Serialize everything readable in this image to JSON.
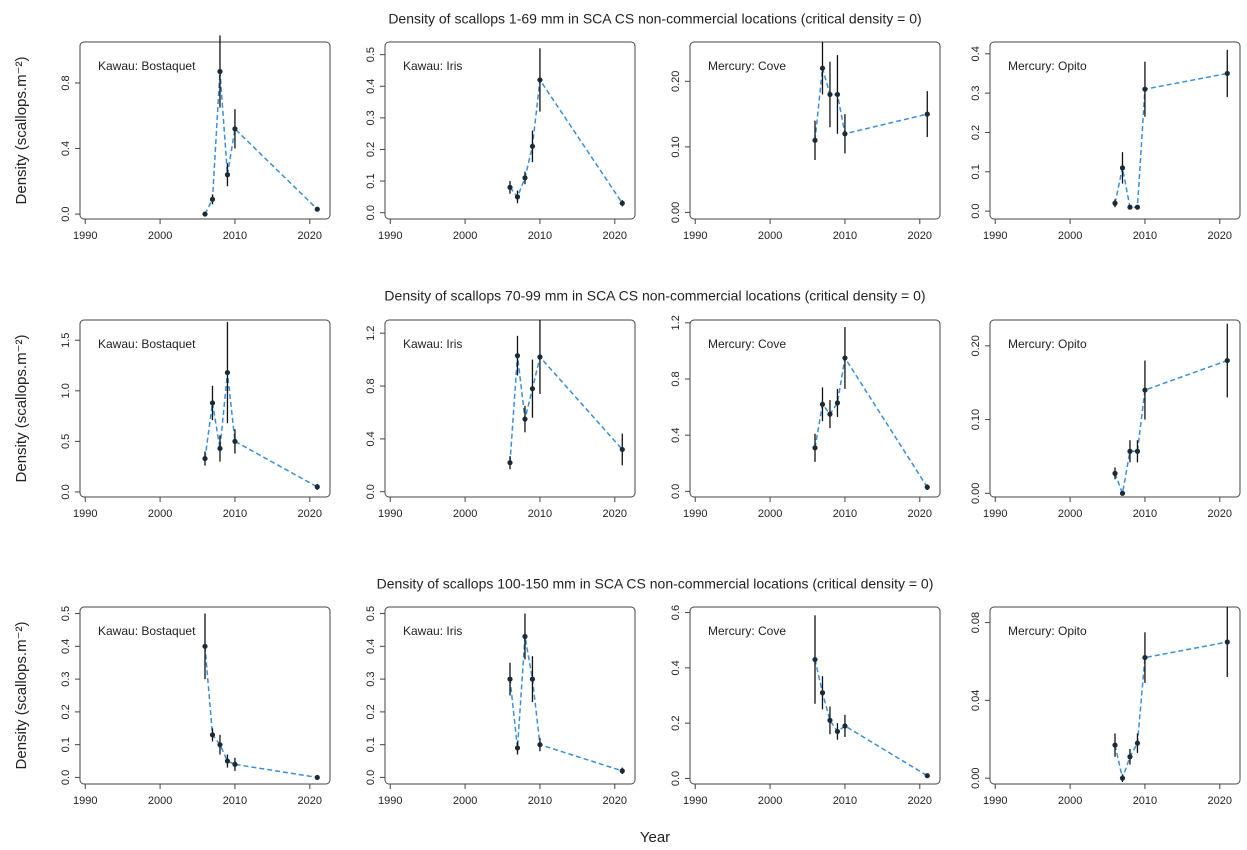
{
  "row_titles": [
    "Density of scallops 1-69 mm in SCA CS non-commercial locations (critical density = 0)",
    "Density of scallops 70-99 mm in SCA CS non-commercial locations (critical density = 0)",
    "Density of scallops 100-150 mm in SCA CS non-commercial locations (critical density = 0)"
  ],
  "ylabel": "Density (scallops.m⁻²)",
  "xlabel": "Year",
  "chart_data": [
    {
      "type": "line",
      "title": "Kawau: Bostaquet",
      "x": [
        2006,
        2007,
        2008,
        2009,
        2010,
        2021
      ],
      "values": [
        0.0,
        0.09,
        0.87,
        0.24,
        0.52,
        0.03
      ],
      "errors": [
        0.005,
        0.03,
        0.22,
        0.07,
        0.12,
        0.01
      ],
      "xlim": [
        1989.3,
        2022.7
      ],
      "xticks": [
        1990,
        2000,
        2010,
        2020
      ],
      "ylim": [
        -0.03,
        1.05
      ],
      "yticks": [
        {
          "value": 0,
          "label": "0.0"
        },
        0.4,
        0.8
      ],
      "color": "#3a8fd9"
    },
    {
      "type": "line",
      "title": "Kawau: Iris",
      "x": [
        2006,
        2007,
        2008,
        2009,
        2010,
        2021
      ],
      "values": [
        0.08,
        0.05,
        0.11,
        0.21,
        0.42,
        0.03
      ],
      "errors": [
        0.02,
        0.02,
        0.02,
        0.05,
        0.1,
        0.01
      ],
      "xlim": [
        1989.3,
        2022.7
      ],
      "xticks": [
        1990,
        2000,
        2010,
        2020
      ],
      "ylim": [
        -0.02,
        0.54
      ],
      "yticks": [
        {
          "value": 0,
          "label": "0.0"
        },
        0.1,
        0.2,
        0.3,
        0.4,
        0.5
      ],
      "color": "#3a8fd9"
    },
    {
      "type": "line",
      "title": "Mercury: Cove",
      "x": [
        2006,
        2007,
        2008,
        2009,
        2010,
        2021
      ],
      "values": [
        0.11,
        0.22,
        0.18,
        0.18,
        0.12,
        0.15
      ],
      "errors": [
        0.03,
        0.04,
        0.05,
        0.06,
        0.03,
        0.035
      ],
      "xlim": [
        1989.3,
        2022.7
      ],
      "xticks": [
        1990,
        2000,
        2010,
        2020
      ],
      "ylim": [
        -0.01,
        0.26
      ],
      "yticks": [
        {
          "value": 0,
          "label": "0.00"
        },
        {
          "value": 0.1,
          "label": "0.10"
        },
        {
          "value": 0.2,
          "label": "0.20"
        }
      ],
      "color": "#3a8fd9"
    },
    {
      "type": "line",
      "title": "Mercury: Opito",
      "x": [
        2006,
        2007,
        2008,
        2009,
        2010,
        2021
      ],
      "values": [
        0.02,
        0.11,
        0.01,
        0.01,
        0.31,
        0.35
      ],
      "errors": [
        0.01,
        0.04,
        0.005,
        0.005,
        0.07,
        0.06
      ],
      "xlim": [
        1989.3,
        2022.7
      ],
      "xticks": [
        1990,
        2000,
        2010,
        2020
      ],
      "ylim": [
        -0.02,
        0.43
      ],
      "yticks": [
        {
          "value": 0,
          "label": "0.0"
        },
        0.1,
        0.2,
        0.3,
        0.4
      ],
      "color": "#3a8fd9"
    },
    {
      "type": "line",
      "title": "Kawau: Bostaquet",
      "x": [
        2006,
        2007,
        2008,
        2009,
        2010,
        2021
      ],
      "values": [
        0.33,
        0.88,
        0.43,
        1.18,
        0.5,
        0.05
      ],
      "errors": [
        0.07,
        0.17,
        0.13,
        0.5,
        0.12,
        0.03
      ],
      "xlim": [
        1989.3,
        2022.7
      ],
      "xticks": [
        1990,
        2000,
        2010,
        2020
      ],
      "ylim": [
        -0.05,
        1.7
      ],
      "yticks": [
        {
          "value": 0,
          "label": "0.0"
        },
        0.5,
        {
          "value": 1,
          "label": "1.0"
        },
        1.5
      ],
      "color": "#3a8fd9"
    },
    {
      "type": "line",
      "title": "Kawau: Iris",
      "x": [
        2006,
        2007,
        2008,
        2009,
        2010,
        2021
      ],
      "values": [
        0.22,
        1.03,
        0.55,
        0.78,
        1.02,
        0.32
      ],
      "errors": [
        0.05,
        0.15,
        0.1,
        0.22,
        0.28,
        0.12
      ],
      "xlim": [
        1989.3,
        2022.7
      ],
      "xticks": [
        1990,
        2000,
        2010,
        2020
      ],
      "ylim": [
        -0.04,
        1.3
      ],
      "yticks": [
        {
          "value": 0,
          "label": "0.0"
        },
        0.4,
        0.8,
        1.2
      ],
      "color": "#3a8fd9"
    },
    {
      "type": "line",
      "title": "Mercury: Cove",
      "x": [
        2006,
        2007,
        2008,
        2009,
        2010,
        2021
      ],
      "values": [
        0.31,
        0.62,
        0.55,
        0.63,
        0.95,
        0.03
      ],
      "errors": [
        0.1,
        0.12,
        0.1,
        0.1,
        0.22,
        0.02
      ],
      "xlim": [
        1989.3,
        2022.7
      ],
      "xticks": [
        1990,
        2000,
        2010,
        2020
      ],
      "ylim": [
        -0.04,
        1.22
      ],
      "yticks": [
        {
          "value": 0,
          "label": "0.0"
        },
        0.4,
        0.8,
        1.2
      ],
      "color": "#3a8fd9"
    },
    {
      "type": "line",
      "title": "Mercury: Opito",
      "x": [
        2006,
        2007,
        2008,
        2009,
        2010,
        2021
      ],
      "values": [
        0.027,
        0.0,
        0.057,
        0.057,
        0.14,
        0.18
      ],
      "errors": [
        0.008,
        0.003,
        0.015,
        0.015,
        0.04,
        0.05
      ],
      "xlim": [
        1989.3,
        2022.7
      ],
      "xticks": [
        1990,
        2000,
        2010,
        2020
      ],
      "ylim": [
        -0.005,
        0.235
      ],
      "yticks": [
        {
          "value": 0,
          "label": "0.00"
        },
        {
          "value": 0.1,
          "label": "0.10"
        },
        {
          "value": 0.2,
          "label": "0.20"
        }
      ],
      "color": "#3a8fd9"
    },
    {
      "type": "line",
      "title": "Kawau: Bostaquet",
      "x": [
        2006,
        2007,
        2008,
        2009,
        2010,
        2021
      ],
      "values": [
        0.4,
        0.13,
        0.1,
        0.05,
        0.04,
        0.0
      ],
      "errors": [
        0.1,
        0.02,
        0.03,
        0.02,
        0.02,
        0.005
      ],
      "xlim": [
        1989.3,
        2022.7
      ],
      "xticks": [
        1990,
        2000,
        2010,
        2020
      ],
      "ylim": [
        -0.02,
        0.52
      ],
      "yticks": [
        {
          "value": 0,
          "label": "0.0"
        },
        0.1,
        0.2,
        0.3,
        0.4,
        0.5
      ],
      "color": "#3a8fd9"
    },
    {
      "type": "line",
      "title": "Kawau: Iris",
      "x": [
        2006,
        2007,
        2008,
        2009,
        2010,
        2021
      ],
      "values": [
        0.3,
        0.09,
        0.43,
        0.3,
        0.1,
        0.02
      ],
      "errors": [
        0.05,
        0.02,
        0.07,
        0.07,
        0.02,
        0.01
      ],
      "xlim": [
        1989.3,
        2022.7
      ],
      "xticks": [
        1990,
        2000,
        2010,
        2020
      ],
      "ylim": [
        -0.02,
        0.52
      ],
      "yticks": [
        {
          "value": 0,
          "label": "0.0"
        },
        0.1,
        0.2,
        0.3,
        0.4,
        0.5
      ],
      "color": "#3a8fd9"
    },
    {
      "type": "line",
      "title": "Mercury: Cove",
      "x": [
        2006,
        2007,
        2008,
        2009,
        2010,
        2021
      ],
      "values": [
        0.43,
        0.31,
        0.21,
        0.17,
        0.19,
        0.01
      ],
      "errors": [
        0.16,
        0.06,
        0.05,
        0.03,
        0.04,
        0.005
      ],
      "xlim": [
        1989.3,
        2022.7
      ],
      "xticks": [
        1990,
        2000,
        2010,
        2020
      ],
      "ylim": [
        -0.02,
        0.62
      ],
      "yticks": [
        {
          "value": 0,
          "label": "0.0"
        },
        0.2,
        0.4,
        0.6
      ],
      "color": "#3a8fd9"
    },
    {
      "type": "line",
      "title": "Mercury: Opito",
      "x": [
        2006,
        2007,
        2008,
        2009,
        2010,
        2021
      ],
      "values": [
        0.017,
        0.0,
        0.011,
        0.018,
        0.062,
        0.07
      ],
      "errors": [
        0.006,
        0.002,
        0.004,
        0.005,
        0.013,
        0.018
      ],
      "xlim": [
        1989.3,
        2022.7
      ],
      "xticks": [
        1990,
        2000,
        2010,
        2020
      ],
      "ylim": [
        -0.003,
        0.088
      ],
      "yticks": [
        {
          "value": 0,
          "label": "0.00"
        },
        0.04,
        0.08
      ],
      "color": "#3a8fd9"
    }
  ]
}
